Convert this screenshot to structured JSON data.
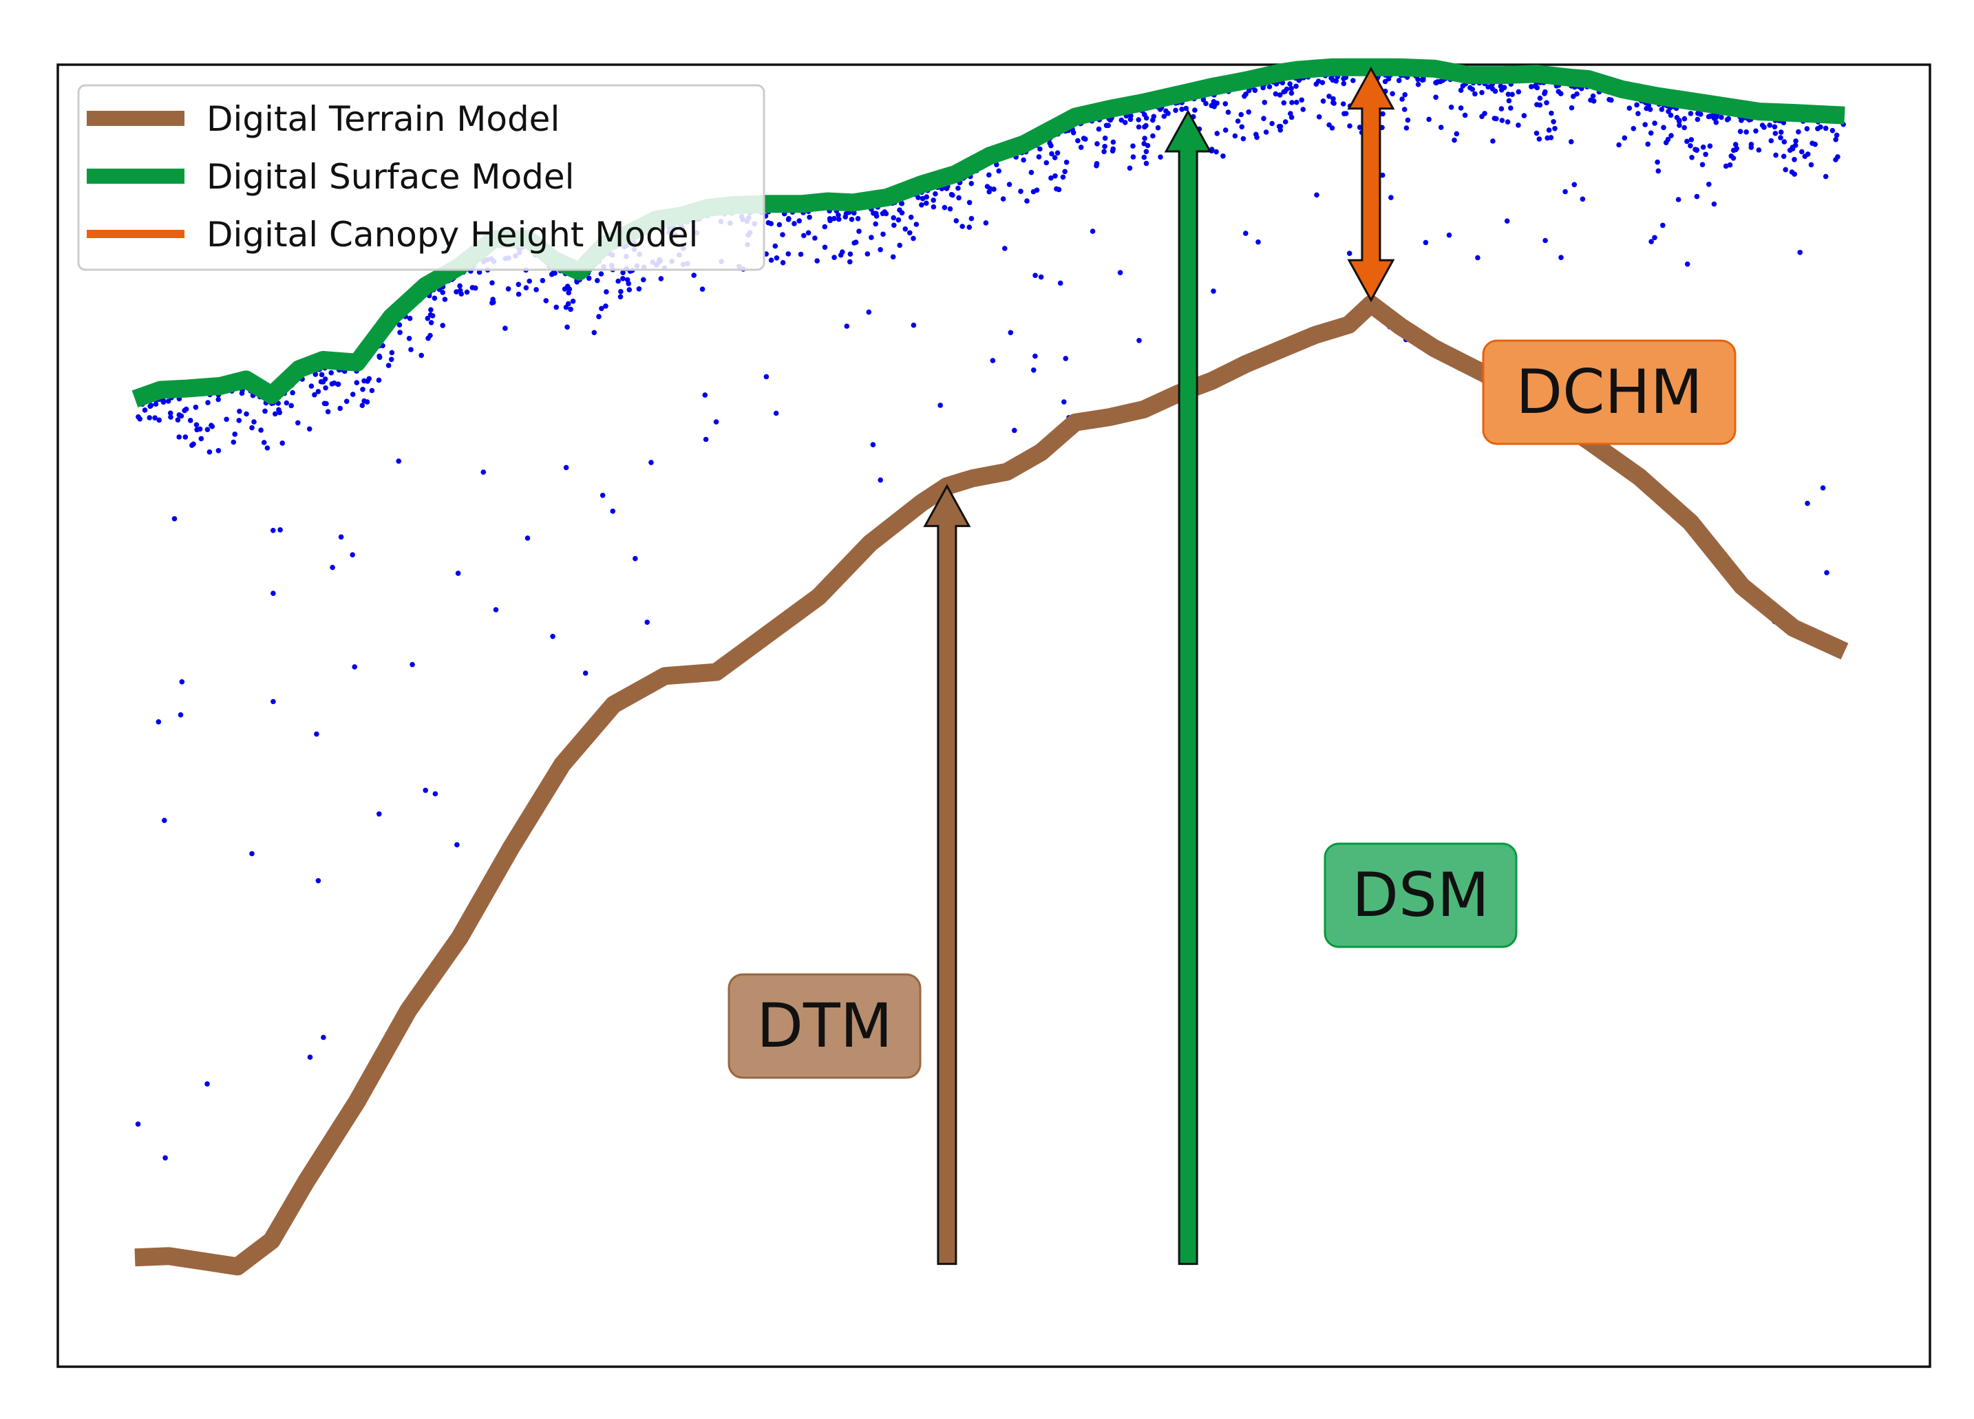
{
  "chart_data": {
    "type": "line",
    "title": "",
    "xlabel": "",
    "ylabel": "",
    "xlim": [
      0,
      100
    ],
    "ylim": [
      0,
      100
    ],
    "axes_visible": false,
    "grid": false,
    "legend_position": "top-left",
    "series": [
      {
        "key": "dtm",
        "name": "Digital Terrain Model",
        "color": "#9a6640",
        "x": [
          0,
          2,
          4,
          6,
          8,
          10,
          13,
          16,
          19,
          22,
          25,
          28,
          31,
          34,
          37,
          40,
          43,
          46,
          47.5,
          49,
          51,
          53,
          55,
          57,
          59,
          61,
          63,
          65,
          67,
          69,
          71,
          72.3,
          74,
          76,
          79,
          82,
          85,
          88,
          91,
          94,
          97,
          100
        ],
        "y": [
          6.5,
          6.6,
          6.2,
          5.8,
          7.8,
          12.3,
          18.5,
          25.5,
          31.1,
          38,
          44.4,
          49,
          51.2,
          51.5,
          54.4,
          57.3,
          61.4,
          64.5,
          65.8,
          66.4,
          66.9,
          68.4,
          70.7,
          71.1,
          71.7,
          72.9,
          73.9,
          75.2,
          76.3,
          77.4,
          78.2,
          79.8,
          78.1,
          76.4,
          74.4,
          71.9,
          69.3,
          66.5,
          63,
          58.1,
          54.9,
          53.1
        ]
      },
      {
        "key": "dsm",
        "name": "Digital Surface Model",
        "color": "#08993f",
        "x": [
          0,
          1.5,
          3,
          5,
          6.5,
          8,
          9.6,
          11,
          13,
          15,
          17,
          19,
          21,
          23,
          24.5,
          26,
          27.5,
          29,
          30.5,
          32,
          33.5,
          35,
          37,
          39,
          40.5,
          42,
          44,
          46,
          48,
          50,
          52,
          54,
          55,
          57,
          59,
          61,
          63,
          65,
          67,
          68,
          70,
          72,
          74,
          76,
          78,
          80,
          82,
          84,
          85,
          87,
          89,
          91,
          93,
          95,
          97,
          100
        ],
        "y": [
          72.5,
          73.2,
          73.3,
          73.5,
          74,
          72.8,
          74.8,
          75.5,
          75.3,
          78.8,
          81.2,
          82.7,
          84.8,
          84.8,
          83.2,
          82.3,
          84.4,
          85.3,
          86.3,
          86.6,
          87.2,
          87.4,
          87.5,
          87.5,
          87.7,
          87.6,
          88,
          89,
          89.8,
          91.2,
          92.1,
          93.5,
          94.2,
          94.8,
          95.3,
          95.9,
          96.5,
          97,
          97.6,
          97.8,
          98,
          98,
          98,
          97.9,
          97.4,
          97.4,
          97.5,
          97.2,
          97.1,
          96.3,
          95.8,
          95.4,
          95,
          94.6,
          94.5,
          94.3
        ]
      },
      {
        "key": "dchm",
        "name": "Digital Canopy Height Model",
        "color": "#e8610c",
        "x": [
          72.3,
          72.3
        ],
        "y": [
          80.1,
          97.9
        ]
      }
    ],
    "point_cloud": {
      "color": "#0000ee",
      "description_source": "lidar returns"
    },
    "arrows": [
      {
        "key": "dtm",
        "label": "DTM",
        "x": 47.5,
        "y_from": 6,
        "y_to": 65.8,
        "color": "#9a6640",
        "double_headed": false
      },
      {
        "key": "dsm",
        "label": "DSM",
        "x": 61.6,
        "y_from": 6,
        "y_to": 94.6,
        "color": "#08993f",
        "double_headed": false
      },
      {
        "key": "dchm",
        "label": "DCHM",
        "x": 72.3,
        "y_from": 80.1,
        "y_to": 97.9,
        "color": "#e8610c",
        "double_headed": true
      }
    ],
    "label_boxes": [
      {
        "key": "dtm",
        "label": "DTM",
        "fill": "#b98e6e",
        "stroke": "#9a6640"
      },
      {
        "key": "dsm",
        "label": "DSM",
        "fill": "#4eb87b",
        "stroke": "#08993f"
      },
      {
        "key": "dchm",
        "label": "DCHM",
        "fill": "#f1964f",
        "stroke": "#e8610c"
      }
    ]
  }
}
